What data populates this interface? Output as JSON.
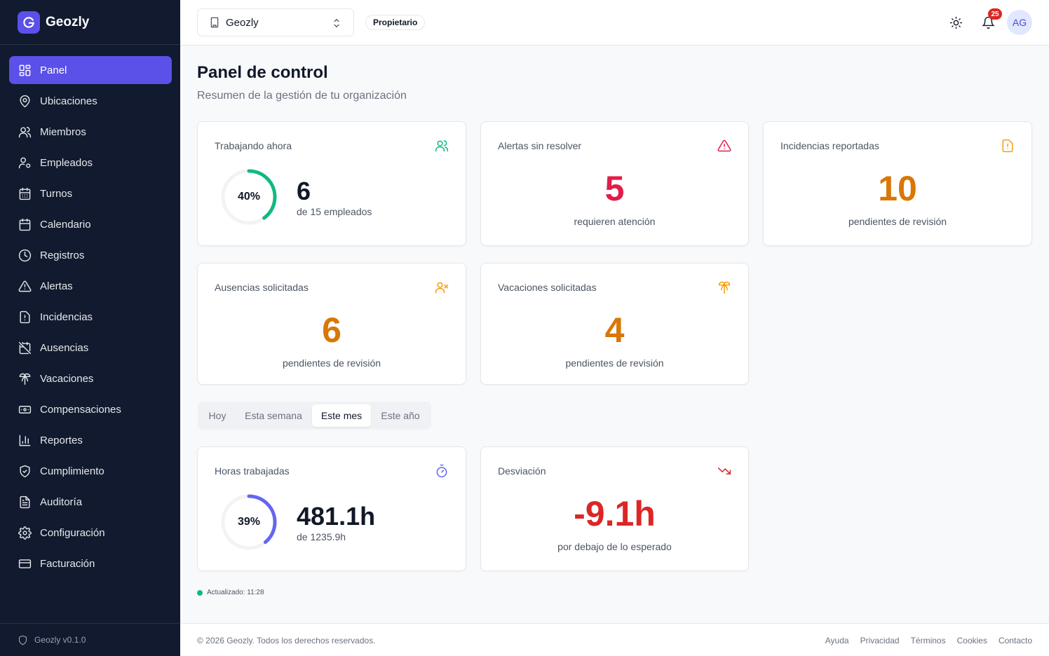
{
  "brand": {
    "name": "Geozly"
  },
  "sidebar": {
    "items": [
      {
        "label": "Panel",
        "icon": "grid-icon",
        "active": true
      },
      {
        "label": "Ubicaciones",
        "icon": "map-pin-icon"
      },
      {
        "label": "Miembros",
        "icon": "users-icon"
      },
      {
        "label": "Empleados",
        "icon": "user-cog-icon"
      },
      {
        "label": "Turnos",
        "icon": "calendar-grid-icon"
      },
      {
        "label": "Calendario",
        "icon": "calendar-icon"
      },
      {
        "label": "Registros",
        "icon": "clock-icon"
      },
      {
        "label": "Alertas",
        "icon": "alert-triangle-icon"
      },
      {
        "label": "Incidencias",
        "icon": "file-alert-icon"
      },
      {
        "label": "Ausencias",
        "icon": "calendar-off-icon"
      },
      {
        "label": "Vacaciones",
        "icon": "palm-tree-icon"
      },
      {
        "label": "Compensaciones",
        "icon": "banknote-icon"
      },
      {
        "label": "Reportes",
        "icon": "bar-chart-icon"
      },
      {
        "label": "Cumplimiento",
        "icon": "shield-check-icon"
      },
      {
        "label": "Auditoría",
        "icon": "file-text-icon"
      },
      {
        "label": "Configuración",
        "icon": "gear-icon"
      },
      {
        "label": "Facturación",
        "icon": "credit-card-icon"
      }
    ],
    "version": "Geozly v0.1.0"
  },
  "header": {
    "org_name": "Geozly",
    "role": "Propietario",
    "notifications_count": "25",
    "avatar_initials": "AG"
  },
  "page": {
    "title": "Panel de control",
    "subtitle": "Resumen de la gestión de tu organización"
  },
  "cards": {
    "working_now": {
      "title": "Trabajando ahora",
      "value": "6",
      "sub": "de 15 empleados",
      "percent_label": "40%",
      "percent": 40
    },
    "alerts": {
      "title": "Alertas sin resolver",
      "value": "5",
      "sub": "requieren atención"
    },
    "incidents": {
      "title": "Incidencias reportadas",
      "value": "10",
      "sub": "pendientes de revisión"
    },
    "absences": {
      "title": "Ausencias solicitadas",
      "value": "6",
      "sub": "pendientes de revisión"
    },
    "vacations": {
      "title": "Vacaciones solicitadas",
      "value": "4",
      "sub": "pendientes de revisión"
    },
    "hours": {
      "title": "Horas trabajadas",
      "value": "481.1h",
      "sub": "de 1235.9h",
      "percent_label": "39%",
      "percent": 39
    },
    "deviation": {
      "title": "Desviación",
      "value": "-9.1h",
      "sub": "por debajo de lo esperado"
    }
  },
  "period_tabs": [
    {
      "label": "Hoy"
    },
    {
      "label": "Esta semana"
    },
    {
      "label": "Este mes",
      "active": true
    },
    {
      "label": "Este año"
    }
  ],
  "updated": "Actualizado: 11:28",
  "footer": {
    "copyright": "© 2026 Geozly. Todos los derechos reservados.",
    "links": [
      "Ayuda",
      "Privacidad",
      "Términos",
      "Cookies",
      "Contacto"
    ]
  },
  "colors": {
    "accent": "#5b50e8",
    "sidebar_bg": "#111a2e",
    "green": "#10b981",
    "red": "#e11d48",
    "orange": "#d97706",
    "indigo": "#6366f1"
  }
}
